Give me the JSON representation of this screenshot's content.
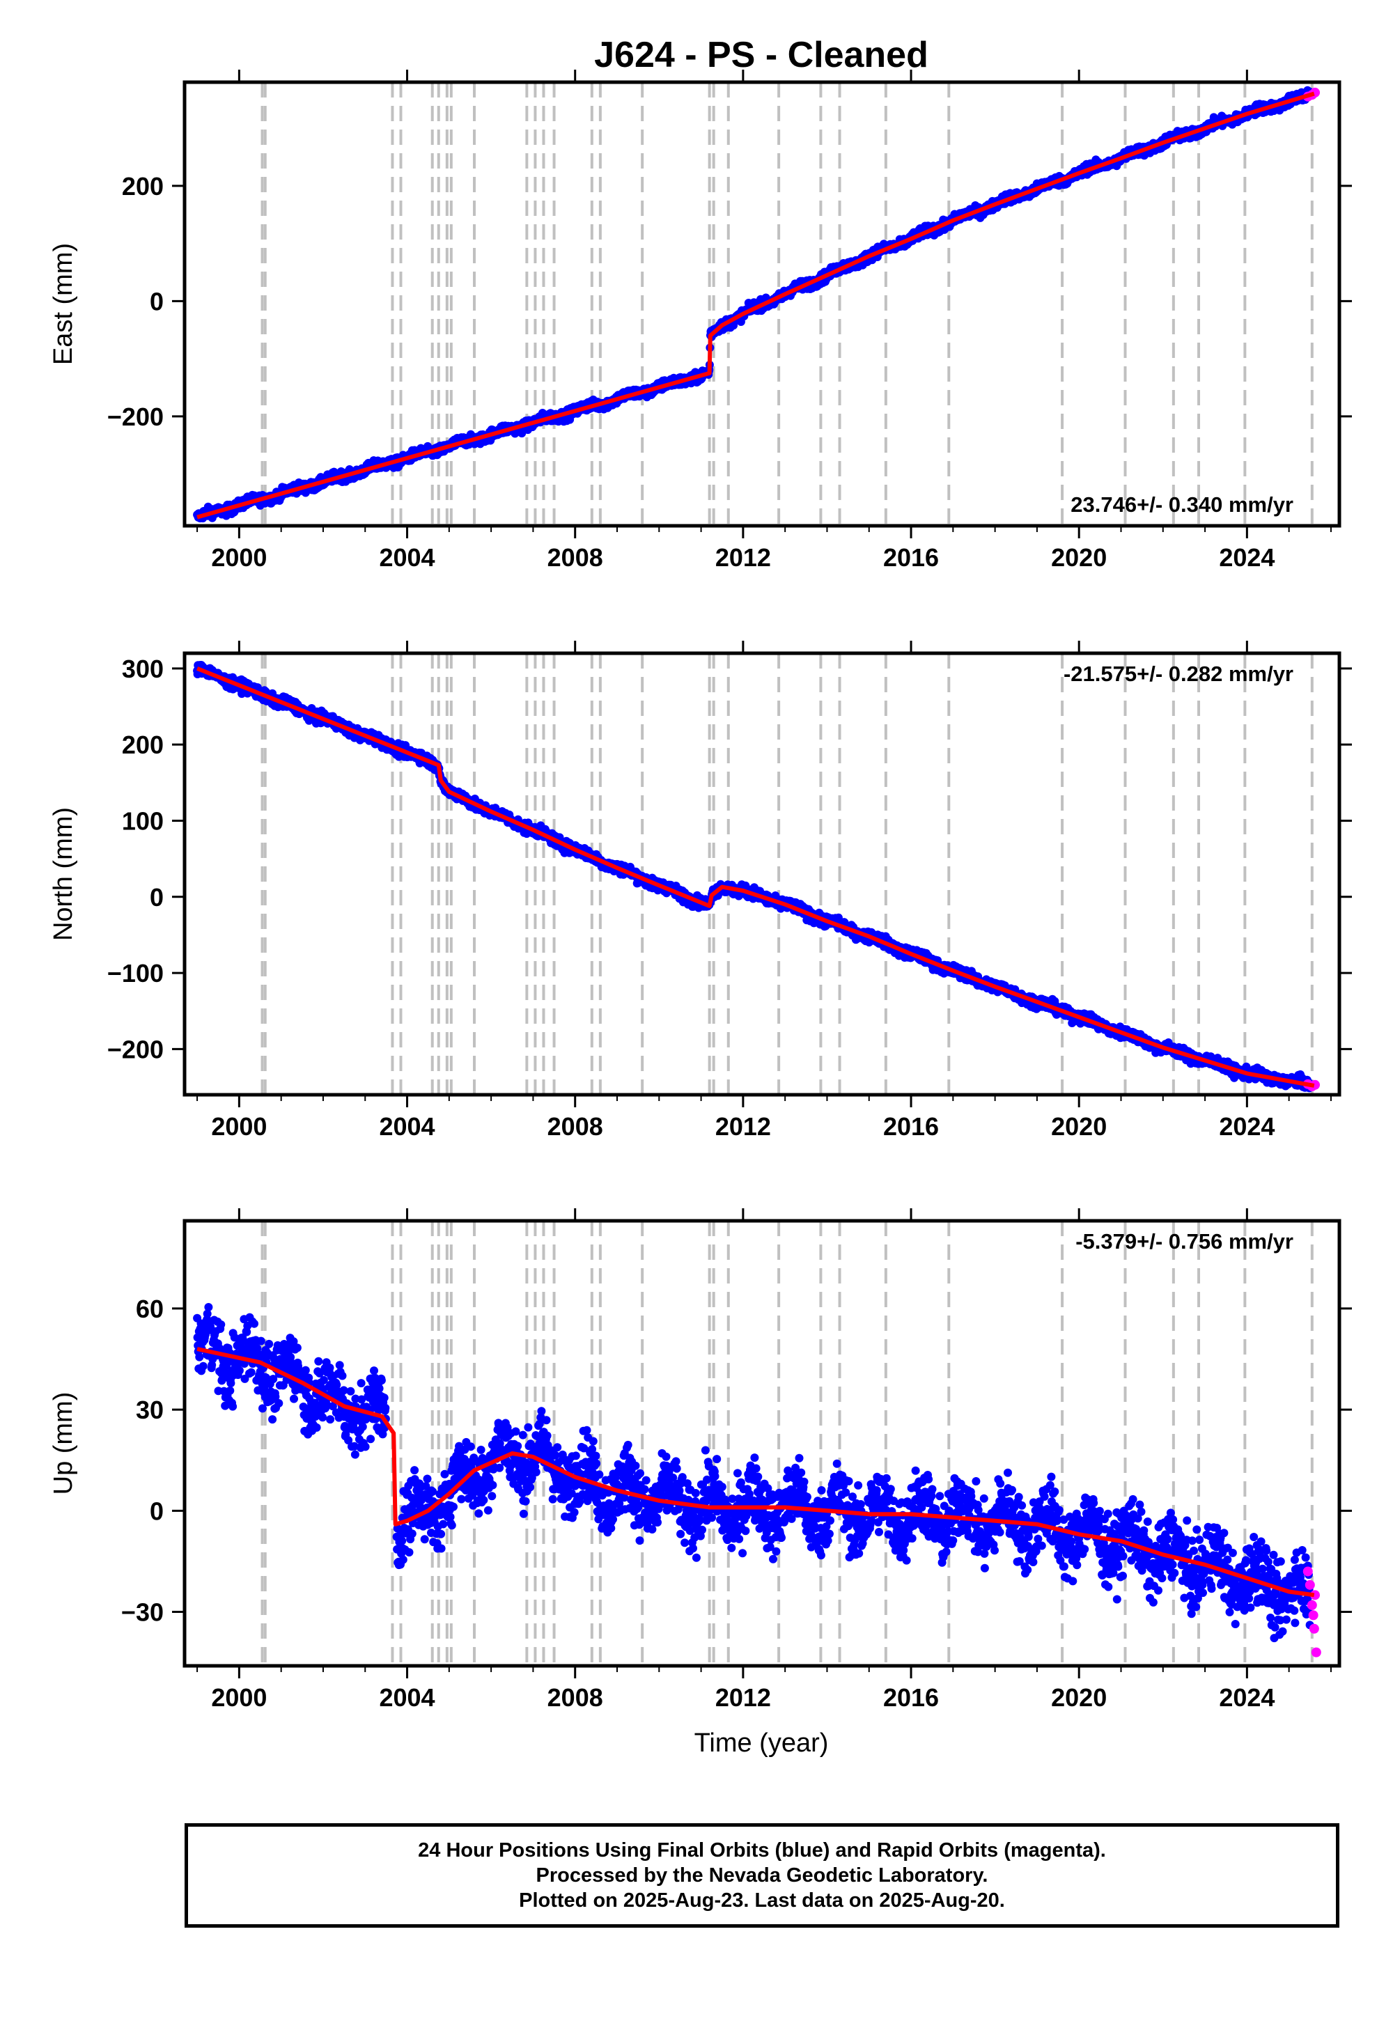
{
  "chart_data": {
    "title": "J624  - PS - Cleaned",
    "xlabel": "Time (year)",
    "x_ticks": [
      2000,
      2004,
      2008,
      2012,
      2016,
      2020,
      2024
    ],
    "xlim": [
      1998.7,
      2026.2
    ],
    "colors": {
      "final": "#0000ff",
      "rapid": "#ff00ff",
      "model": "#ff0000",
      "steps": "#c0c0c0"
    },
    "step_epochs": [
      2000.55,
      2000.62,
      2003.65,
      2003.85,
      2004.6,
      2004.75,
      2004.95,
      2005.05,
      2005.6,
      2006.85,
      2007.05,
      2007.25,
      2007.5,
      2008.4,
      2008.6,
      2009.6,
      2011.2,
      2011.3,
      2011.65,
      2012.85,
      2013.85,
      2014.3,
      2015.4,
      2016.9,
      2019.6,
      2021.1,
      2022.25,
      2022.85,
      2023.95,
      2025.55
    ],
    "panels": [
      {
        "type": "scatter",
        "ylabel": "East (mm)",
        "ylim": [
          -390,
          380
        ],
        "y_ticks": [
          -200,
          0,
          200
        ],
        "rate_text": "23.746+/- 0.340 mm/yr",
        "rate_position": "bottom-right",
        "model": [
          [
            1999.0,
            -375
          ],
          [
            2011.2,
            -125
          ],
          [
            2011.22,
            -60
          ],
          [
            2011.5,
            -42
          ],
          [
            2012.0,
            -22
          ],
          [
            2013.0,
            12
          ],
          [
            2014.0,
            45
          ],
          [
            2015.0,
            78
          ],
          [
            2016.0,
            108
          ],
          [
            2017.0,
            140
          ],
          [
            2018.0,
            168
          ],
          [
            2019.0,
            195
          ],
          [
            2020.0,
            222
          ],
          [
            2021.0,
            248
          ],
          [
            2022.0,
            275
          ],
          [
            2023.0,
            300
          ],
          [
            2024.0,
            325
          ],
          [
            2025.6,
            360
          ]
        ],
        "scatter_spread": 6,
        "seasonal_amp": 3,
        "rapid": [
          [
            2025.45,
            355
          ],
          [
            2025.55,
            358
          ],
          [
            2025.62,
            362
          ]
        ]
      },
      {
        "type": "scatter",
        "ylabel": "North (mm)",
        "ylim": [
          -260,
          320
        ],
        "y_ticks": [
          -200,
          -100,
          0,
          100,
          200,
          300
        ],
        "rate_text": "-21.575+/- 0.282 mm/yr",
        "rate_position": "top-right",
        "model": [
          [
            1999.0,
            300
          ],
          [
            2004.75,
            173
          ],
          [
            2004.8,
            153
          ],
          [
            2005.0,
            138
          ],
          [
            2005.5,
            125
          ],
          [
            2006.0,
            112
          ],
          [
            2007.0,
            88
          ],
          [
            2008.0,
            62
          ],
          [
            2009.0,
            38
          ],
          [
            2010.0,
            15
          ],
          [
            2011.2,
            -12
          ],
          [
            2011.25,
            2
          ],
          [
            2011.5,
            13
          ],
          [
            2012.0,
            8
          ],
          [
            2013.0,
            -10
          ],
          [
            2014.0,
            -32
          ],
          [
            2015.0,
            -52
          ],
          [
            2016.0,
            -75
          ],
          [
            2017.0,
            -97
          ],
          [
            2018.0,
            -118
          ],
          [
            2019.0,
            -138
          ],
          [
            2020.0,
            -158
          ],
          [
            2021.0,
            -178
          ],
          [
            2022.0,
            -198
          ],
          [
            2023.0,
            -215
          ],
          [
            2024.0,
            -232
          ],
          [
            2025.6,
            -248
          ]
        ],
        "scatter_spread": 5,
        "seasonal_amp": 2,
        "rapid": [
          [
            2025.45,
            -246
          ],
          [
            2025.55,
            -249
          ],
          [
            2025.62,
            -247
          ]
        ]
      },
      {
        "type": "scatter",
        "ylabel": "Up (mm)",
        "ylim": [
          -46,
          86
        ],
        "y_ticks": [
          -30,
          0,
          30,
          60
        ],
        "rate_text": "-5.379+/- 0.756 mm/yr",
        "rate_position": "top-right",
        "model": [
          [
            1999.0,
            48
          ],
          [
            2000.5,
            44
          ],
          [
            2001.5,
            38
          ],
          [
            2002.5,
            31
          ],
          [
            2003.4,
            28
          ],
          [
            2003.68,
            23
          ],
          [
            2003.72,
            -4
          ],
          [
            2004.0,
            -3
          ],
          [
            2004.5,
            0
          ],
          [
            2005.0,
            5
          ],
          [
            2005.6,
            12
          ],
          [
            2006.5,
            17
          ],
          [
            2007.0,
            16
          ],
          [
            2008.0,
            10
          ],
          [
            2009.0,
            6
          ],
          [
            2010.0,
            3
          ],
          [
            2011.2,
            1
          ],
          [
            2012.0,
            1
          ],
          [
            2013.0,
            1
          ],
          [
            2014.0,
            0
          ],
          [
            2015.0,
            -1
          ],
          [
            2016.0,
            -1
          ],
          [
            2017.0,
            -2
          ],
          [
            2018.0,
            -3
          ],
          [
            2019.0,
            -4
          ],
          [
            2020.0,
            -7
          ],
          [
            2021.0,
            -9
          ],
          [
            2022.0,
            -13
          ],
          [
            2023.0,
            -16
          ],
          [
            2024.0,
            -20
          ],
          [
            2025.0,
            -24
          ],
          [
            2025.6,
            -25
          ]
        ],
        "scatter_spread": 7,
        "seasonal_amp": 5,
        "rapid": [
          [
            2025.45,
            -18
          ],
          [
            2025.5,
            -22
          ],
          [
            2025.55,
            -28
          ],
          [
            2025.6,
            -35
          ],
          [
            2025.65,
            -42
          ],
          [
            2025.62,
            -25
          ],
          [
            2025.58,
            -31
          ]
        ]
      }
    ]
  },
  "footer": {
    "line1": "24 Hour Positions Using Final Orbits (blue) and Rapid Orbits (magenta).",
    "line2": "Processed by the Nevada Geodetic Laboratory.",
    "line3": "Plotted on 2025-Aug-23. Last data on 2025-Aug-20."
  }
}
